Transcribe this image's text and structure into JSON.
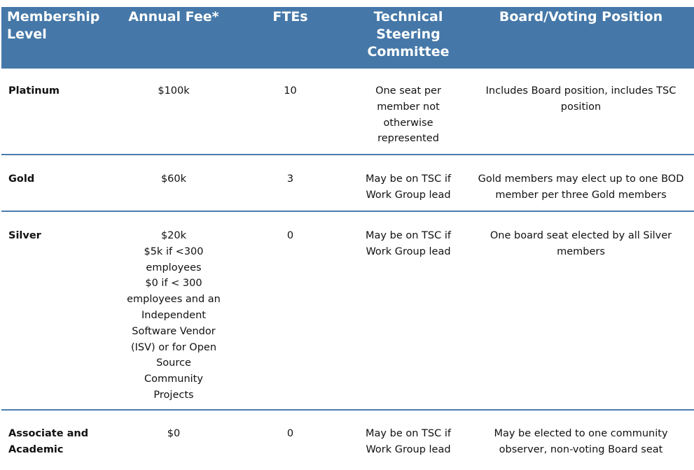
{
  "table": {
    "headers": [
      "Membership Level",
      "Annual Fee*",
      "FTEs",
      "Technical Steering Committee",
      "Board/Voting Position"
    ],
    "rows": [
      {
        "level": "Platinum",
        "fee": [
          "$100k"
        ],
        "ftes": "10",
        "tsc": "One seat per member not otherwise represented",
        "board": "Includes Board position, includes TSC position"
      },
      {
        "level": "Gold",
        "fee": [
          "$60k"
        ],
        "ftes": "3",
        "tsc": "May be on TSC if Work Group lead",
        "board": "Gold members may elect up to one BOD member per three Gold members"
      },
      {
        "level": "Silver",
        "fee": [
          "$20k",
          "$5k if <300 employees",
          "$0 if < 300 employees and an Independent Software Vendor (ISV) or for Open Source Community Projects"
        ],
        "ftes": "0",
        "tsc": "May be on TSC if Work Group lead",
        "board": "One board seat elected by all Silver members"
      },
      {
        "level": "Associate and Academic",
        "fee": [
          "$0"
        ],
        "ftes": "0",
        "tsc": "May be on TSC if Work Group lead",
        "board": "May be elected to one community observer, non-voting Board seat"
      }
    ]
  },
  "colors": {
    "header_bg": "#4578a8",
    "row_divider": "#4a7cad"
  }
}
